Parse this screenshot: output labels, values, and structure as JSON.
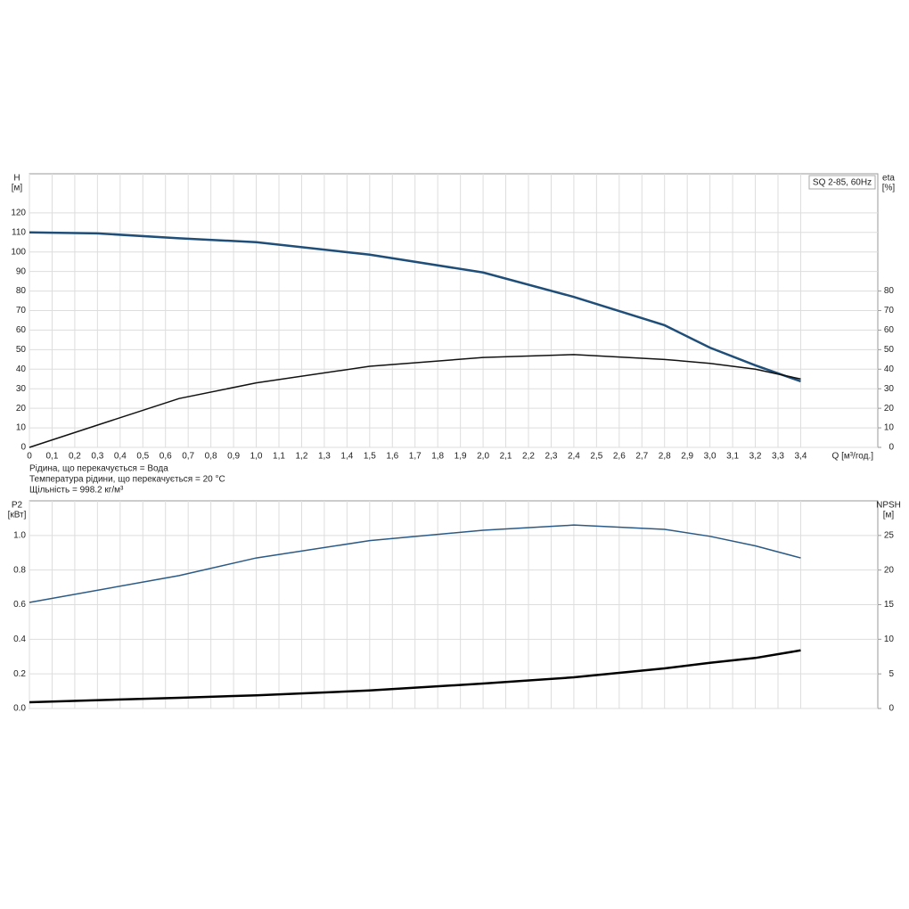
{
  "chart_data": [
    {
      "type": "line",
      "ylabel": "H",
      "yunit": "[м]",
      "y2label": "eta",
      "y2unit": "[%]",
      "xlabel": "Q [м³/год.]",
      "legend_text": "SQ 2-85, 60Hz",
      "notes": [
        "Рідина, що перекачується = Вода",
        "Температура рідини, що перекачується = 20 °C",
        "Щільність = 998.2 кг/м³"
      ],
      "xlim": [
        0,
        3.74
      ],
      "xticks": [
        0,
        {
          "value": 0.1,
          "label": "0,1"
        },
        {
          "value": 0.2,
          "label": "0,2"
        },
        {
          "value": 0.3,
          "label": "0,3"
        },
        {
          "value": 0.4,
          "label": "0,4"
        },
        {
          "value": 0.5,
          "label": "0,5"
        },
        {
          "value": 0.6,
          "label": "0,6"
        },
        {
          "value": 0.7,
          "label": "0,7"
        },
        {
          "value": 0.8,
          "label": "0,8"
        },
        {
          "value": 0.9,
          "label": "0,9"
        },
        {
          "value": 1.0,
          "label": "1,0"
        },
        {
          "value": 1.1,
          "label": "1,1"
        },
        {
          "value": 1.2,
          "label": "1,2"
        },
        {
          "value": 1.3,
          "label": "1,3"
        },
        {
          "value": 1.4,
          "label": "1,4"
        },
        {
          "value": 1.5,
          "label": "1,5"
        },
        {
          "value": 1.6,
          "label": "1,6"
        },
        {
          "value": 1.7,
          "label": "1,7"
        },
        {
          "value": 1.8,
          "label": "1,8"
        },
        {
          "value": 1.9,
          "label": "1,9"
        },
        {
          "value": 2.0,
          "label": "2,0"
        },
        {
          "value": 2.1,
          "label": "2,1"
        },
        {
          "value": 2.2,
          "label": "2,2"
        },
        {
          "value": 2.3,
          "label": "2,3"
        },
        {
          "value": 2.4,
          "label": "2,4"
        },
        {
          "value": 2.5,
          "label": "2,5"
        },
        {
          "value": 2.6,
          "label": "2,6"
        },
        {
          "value": 2.7,
          "label": "2,7"
        },
        {
          "value": 2.8,
          "label": "2,8"
        },
        {
          "value": 2.9,
          "label": "2,9"
        },
        {
          "value": 3.0,
          "label": "3,0"
        },
        {
          "value": 3.1,
          "label": "3,1"
        },
        {
          "value": 3.2,
          "label": "3,2"
        },
        {
          "value": 3.3,
          "label": "3,3"
        },
        {
          "value": 3.4,
          "label": "3,4"
        }
      ],
      "show_xtick_labels": true,
      "ylim": [
        0,
        140
      ],
      "yticks": [
        0,
        10,
        20,
        30,
        40,
        50,
        60,
        70,
        80,
        90,
        100,
        110,
        120
      ],
      "y2lim": [
        0,
        140
      ],
      "y2ticks": [
        0,
        10,
        20,
        30,
        40,
        50,
        60,
        70,
        80
      ],
      "grid": true,
      "series": [
        {
          "color": "#1f4e79",
          "width": 2.5,
          "x": [
            0,
            0.3,
            0.66,
            1.0,
            1.5,
            2.0,
            2.4,
            2.8,
            3.0,
            3.2,
            3.4
          ],
          "values": [
            110,
            109.5,
            107,
            105,
            98.6,
            89.5,
            77,
            62.5,
            51,
            42,
            33.8
          ]
        },
        {
          "color": "#111111",
          "width": 1.5,
          "axis": "y2",
          "x": [
            0,
            0.3,
            0.66,
            1.0,
            1.5,
            2.0,
            2.4,
            2.8,
            3.0,
            3.2,
            3.4
          ],
          "values": [
            0,
            11.4,
            25,
            33,
            41.5,
            46,
            47.5,
            45,
            43,
            40,
            35
          ]
        }
      ]
    },
    {
      "type": "line",
      "ylabel": "P2",
      "yunit": "[кВт]",
      "y2label": "NPSH",
      "y2unit": "[м]",
      "xlim": [
        0,
        3.74
      ],
      "xticks": [
        0,
        0.1,
        0.2,
        0.3,
        0.4,
        0.5,
        0.6,
        0.7,
        0.8,
        0.9,
        1,
        1.1,
        1.2,
        1.3,
        1.4,
        1.5,
        1.6,
        1.7,
        1.8,
        1.9,
        2,
        2.1,
        2.2,
        2.3,
        2.4,
        2.5,
        2.6,
        2.7,
        2.8,
        2.9,
        3,
        3.1,
        3.2,
        3.3,
        3.4
      ],
      "show_xtick_labels": false,
      "ylim": [
        0,
        1.2
      ],
      "yticks": [
        {
          "value": 0,
          "label": "0.0"
        },
        0.2,
        0.4,
        0.6,
        0.8,
        {
          "value": 1,
          "label": "1.0"
        }
      ],
      "y2lim": [
        0,
        30
      ],
      "y2ticks": [
        0,
        5,
        10,
        15,
        20,
        25
      ],
      "grid": true,
      "series": [
        {
          "color": "#2a5a85",
          "width": 1.5,
          "x": [
            0,
            0.66,
            1.0,
            1.5,
            2.0,
            2.4,
            2.8,
            3.0,
            3.2,
            3.4
          ],
          "values": [
            0.613,
            0.768,
            0.87,
            0.97,
            1.03,
            1.06,
            1.035,
            0.995,
            0.94,
            0.87
          ]
        },
        {
          "color": "#000000",
          "width": 2.5,
          "axis": "y2",
          "x": [
            0,
            0.66,
            1.0,
            1.5,
            2.0,
            2.4,
            2.8,
            3.0,
            3.2,
            3.4
          ],
          "values": [
            0.9,
            1.55,
            1.9,
            2.6,
            3.6,
            4.5,
            5.8,
            6.6,
            7.3,
            8.4
          ]
        }
      ]
    }
  ]
}
